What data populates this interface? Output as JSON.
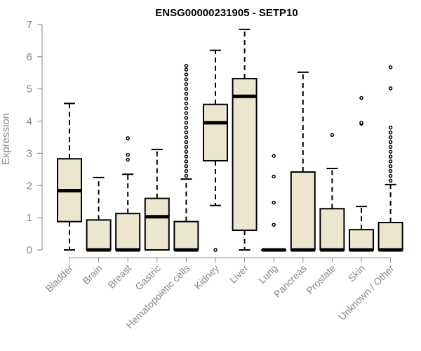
{
  "chart_data": {
    "type": "boxplot",
    "title": "ENSG00000231905 - SETP10",
    "xlabel": "",
    "ylabel": "Expression",
    "ylim": [
      0,
      7
    ],
    "yticks": [
      0,
      1,
      2,
      3,
      4,
      5,
      6,
      7
    ],
    "grid": false,
    "colors": {
      "box_fill": "#ede6cf",
      "box_stroke": "#000000",
      "axis": "#888888"
    },
    "categories": [
      "Bladder",
      "Brain",
      "Breast",
      "Gastric",
      "Hematopoietic cells",
      "Kidney",
      "Liver",
      "Lung",
      "Pancreas",
      "Prostate",
      "Skin",
      "Unknown / Other"
    ],
    "boxes": [
      {
        "whisker_low": 0,
        "q1": 0.88,
        "median": 1.84,
        "q3": 2.83,
        "whisker_high": 4.55,
        "outliers": []
      },
      {
        "whisker_low": 0,
        "q1": 0,
        "median": 0,
        "q3": 0.93,
        "whisker_high": 2.25,
        "outliers": []
      },
      {
        "whisker_low": 0,
        "q1": 0,
        "median": 0,
        "q3": 1.13,
        "whisker_high": 2.35,
        "outliers": [
          2.8,
          2.95,
          3.47
        ]
      },
      {
        "whisker_low": 0,
        "q1": 0,
        "median": 1.03,
        "q3": 1.6,
        "whisker_high": 3.12,
        "outliers": []
      },
      {
        "whisker_low": 0,
        "q1": 0,
        "median": 0,
        "q3": 0.88,
        "whisker_high": 2.2,
        "outliers": [
          2.3,
          2.45,
          2.6,
          2.75,
          2.9,
          3.05,
          3.2,
          3.35,
          3.5,
          3.65,
          3.8,
          3.95,
          4.1,
          4.25,
          4.4,
          4.55,
          4.7,
          4.85,
          5.0,
          5.15,
          5.3,
          5.45,
          5.6,
          5.72
        ]
      },
      {
        "whisker_low": 1.38,
        "q1": 2.77,
        "median": 3.95,
        "q3": 4.52,
        "whisker_high": 6.2,
        "outliers": [
          0
        ]
      },
      {
        "whisker_low": 0,
        "q1": 0.61,
        "median": 4.77,
        "q3": 5.32,
        "whisker_high": 6.85,
        "outliers": []
      },
      {
        "whisker_low": 0,
        "q1": 0,
        "median": 0,
        "q3": 0,
        "whisker_high": 0,
        "outliers": [
          0.78,
          1.47,
          2.28,
          2.92
        ]
      },
      {
        "whisker_low": 0,
        "q1": 0,
        "median": 0,
        "q3": 2.42,
        "whisker_high": 5.52,
        "outliers": []
      },
      {
        "whisker_low": 0,
        "q1": 0,
        "median": 0,
        "q3": 1.28,
        "whisker_high": 2.53,
        "outliers": [
          3.57
        ]
      },
      {
        "whisker_low": 0,
        "q1": 0,
        "median": 0,
        "q3": 0.63,
        "whisker_high": 1.35,
        "outliers": [
          3.92,
          3.95,
          4.72
        ]
      },
      {
        "whisker_low": 0,
        "q1": 0,
        "median": 0,
        "q3": 0.85,
        "whisker_high": 2.03,
        "outliers": [
          2.15,
          2.3,
          2.45,
          2.6,
          2.75,
          2.9,
          3.05,
          3.2,
          3.35,
          3.5,
          3.65,
          3.8,
          5.02,
          5.67
        ]
      }
    ]
  }
}
